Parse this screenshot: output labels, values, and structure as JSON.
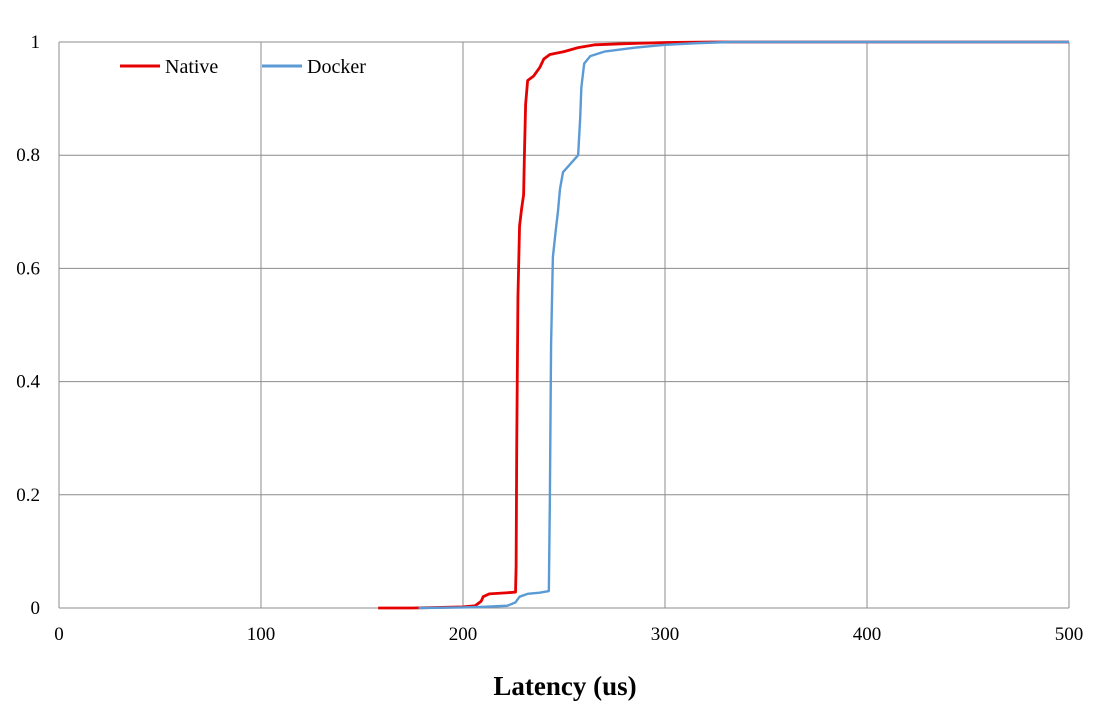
{
  "chart_data": {
    "type": "line",
    "title": "",
    "xlabel": "Latency (us)",
    "ylabel": "",
    "xlim": [
      0,
      500
    ],
    "ylim": [
      0,
      1
    ],
    "x_ticks": [
      "0",
      "100",
      "200",
      "300",
      "400",
      "500"
    ],
    "y_ticks": [
      "0",
      "0.2",
      "0.4",
      "0.6",
      "0.8",
      "1"
    ],
    "grid": true,
    "legend_position": "top-left",
    "series": [
      {
        "name": "Native",
        "color": "#e60000",
        "points": [
          [
            158,
            0
          ],
          [
            175,
            0
          ],
          [
            200,
            0.002
          ],
          [
            206,
            0.004
          ],
          [
            209,
            0.012
          ],
          [
            210,
            0.02
          ],
          [
            213,
            0.025
          ],
          [
            222,
            0.027
          ],
          [
            226,
            0.028
          ],
          [
            226.3,
            0.075
          ],
          [
            226.6,
            0.285
          ],
          [
            227.2,
            0.55
          ],
          [
            228,
            0.675
          ],
          [
            229,
            0.705
          ],
          [
            230,
            0.73
          ],
          [
            230.4,
            0.8
          ],
          [
            231,
            0.89
          ],
          [
            232,
            0.932
          ],
          [
            235,
            0.94
          ],
          [
            238,
            0.955
          ],
          [
            240,
            0.97
          ],
          [
            243,
            0.978
          ],
          [
            250,
            0.983
          ],
          [
            257,
            0.99
          ],
          [
            265,
            0.995
          ],
          [
            280,
            0.997
          ],
          [
            300,
            0.999
          ],
          [
            323,
            1
          ],
          [
            500,
            1
          ]
        ]
      },
      {
        "name": "Docker",
        "color": "#5b9bd5",
        "points": [
          [
            178,
            0
          ],
          [
            200,
            0.001
          ],
          [
            210,
            0.002
          ],
          [
            222,
            0.004
          ],
          [
            226,
            0.01
          ],
          [
            228,
            0.02
          ],
          [
            232,
            0.025
          ],
          [
            238,
            0.027
          ],
          [
            242.5,
            0.03
          ],
          [
            243,
            0.19
          ],
          [
            243.6,
            0.465
          ],
          [
            244.5,
            0.62
          ],
          [
            246,
            0.67
          ],
          [
            247,
            0.7
          ],
          [
            248,
            0.74
          ],
          [
            249.5,
            0.77
          ],
          [
            252,
            0.78
          ],
          [
            257,
            0.8
          ],
          [
            258,
            0.865
          ],
          [
            258.6,
            0.92
          ],
          [
            260,
            0.962
          ],
          [
            263,
            0.975
          ],
          [
            270,
            0.983
          ],
          [
            285,
            0.99
          ],
          [
            300,
            0.995
          ],
          [
            316,
            0.998
          ],
          [
            332,
            1
          ],
          [
            500,
            1
          ]
        ]
      }
    ]
  }
}
